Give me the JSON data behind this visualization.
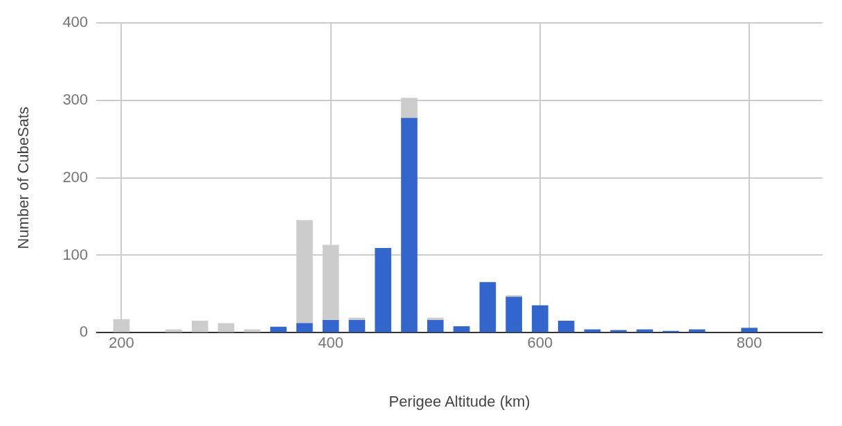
{
  "chart_data": {
    "type": "bar",
    "xlabel": "Perigee Altitude (km)",
    "ylabel": "Number of CubeSats",
    "stacked": true,
    "x": [
      200,
      250,
      275,
      300,
      325,
      350,
      375,
      400,
      425,
      450,
      475,
      500,
      525,
      550,
      575,
      600,
      625,
      650,
      675,
      700,
      725,
      750,
      800
    ],
    "series": [
      {
        "color": "#3366cc",
        "values": [
          null,
          null,
          null,
          null,
          null,
          7,
          12,
          16,
          16,
          109,
          277,
          16,
          8,
          65,
          46,
          35,
          15,
          4,
          3,
          4,
          2,
          4,
          6
        ]
      },
      {
        "color": "#cccccc",
        "values": [
          17,
          4,
          15,
          12,
          4,
          1,
          133,
          97,
          3,
          null,
          26,
          3,
          null,
          null,
          2,
          null,
          null,
          null,
          null,
          null,
          null,
          null,
          null
        ]
      }
    ],
    "xlim": [
      176,
      870
    ],
    "xticks": [
      200,
      400,
      600,
      800
    ],
    "ylim": [
      0,
      400
    ],
    "yticks": [
      0,
      100,
      200,
      300,
      400
    ],
    "grid": true,
    "legend": false
  }
}
